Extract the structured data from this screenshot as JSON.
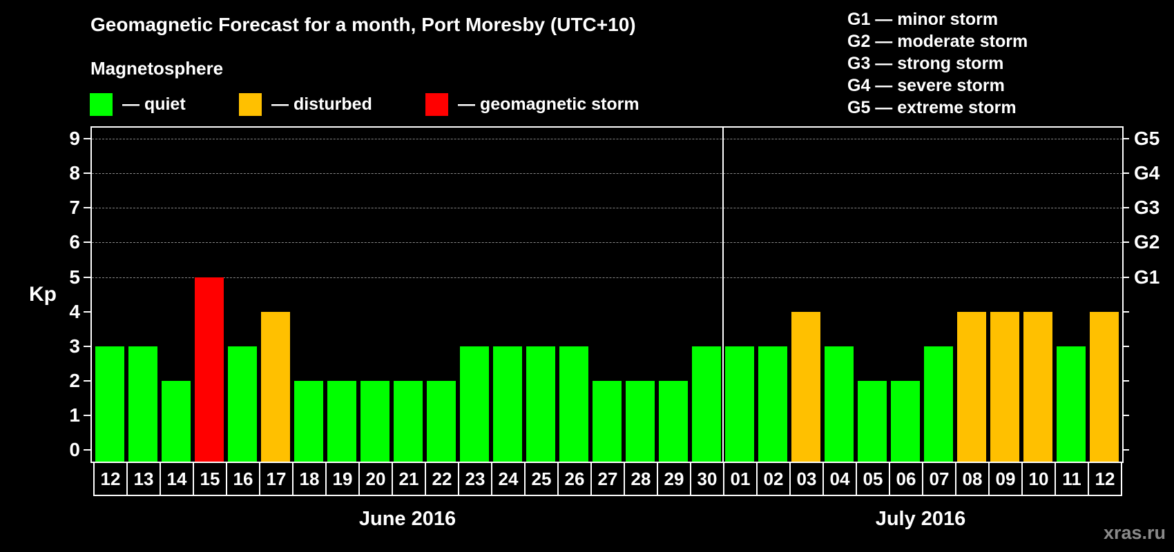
{
  "title": "Geomagnetic Forecast for a month, Port Moresby (UTC+10)",
  "subtitle": "Magnetosphere",
  "legend": [
    {
      "label": "— quiet",
      "color": "#00ff00"
    },
    {
      "label": "— disturbed",
      "color": "#ffc000"
    },
    {
      "label": "— geomagnetic storm",
      "color": "#ff0000"
    }
  ],
  "storm_scale": [
    "G1 — minor storm",
    "G2 — moderate storm",
    "G3 — strong storm",
    "G4 — severe storm",
    "G5 — extreme storm"
  ],
  "y_axis_label": "Kp",
  "y_ticks": [
    "0",
    "1",
    "2",
    "3",
    "4",
    "5",
    "6",
    "7",
    "8",
    "9"
  ],
  "right_ticks": [
    {
      "kp": 5,
      "label": "G1"
    },
    {
      "kp": 6,
      "label": "G2"
    },
    {
      "kp": 7,
      "label": "G3"
    },
    {
      "kp": 8,
      "label": "G4"
    },
    {
      "kp": 9,
      "label": "G5"
    }
  ],
  "months": [
    "June 2016",
    "July 2016"
  ],
  "watermark": "xras.ru",
  "colors": {
    "quiet": "#00ff00",
    "disturbed": "#ffc000",
    "storm": "#ff0000",
    "background": "#000000",
    "grid": "#8a8a8a"
  },
  "chart_data": {
    "type": "bar",
    "title": "Geomagnetic Forecast for a month, Port Moresby (UTC+10)",
    "xlabel": "",
    "ylabel": "Kp",
    "ylim": [
      0,
      9
    ],
    "grid": true,
    "legend_position": "top",
    "categories": [
      "12",
      "13",
      "14",
      "15",
      "16",
      "17",
      "18",
      "19",
      "20",
      "21",
      "22",
      "23",
      "24",
      "25",
      "26",
      "27",
      "28",
      "29",
      "30",
      "01",
      "02",
      "03",
      "04",
      "05",
      "06",
      "07",
      "08",
      "09",
      "10",
      "11",
      "12"
    ],
    "month_groups": [
      {
        "label": "June 2016",
        "start": 0,
        "end": 18
      },
      {
        "label": "July 2016",
        "start": 19,
        "end": 30
      }
    ],
    "values": [
      3,
      3,
      2,
      5,
      3,
      4,
      2,
      2,
      2,
      2,
      2,
      3,
      3,
      3,
      3,
      2,
      2,
      2,
      3,
      3,
      3,
      4,
      3,
      2,
      2,
      3,
      4,
      4,
      4,
      3,
      4
    ],
    "status": [
      "quiet",
      "quiet",
      "quiet",
      "storm",
      "quiet",
      "disturbed",
      "quiet",
      "quiet",
      "quiet",
      "quiet",
      "quiet",
      "quiet",
      "quiet",
      "quiet",
      "quiet",
      "quiet",
      "quiet",
      "quiet",
      "quiet",
      "quiet",
      "quiet",
      "disturbed",
      "quiet",
      "quiet",
      "quiet",
      "quiet",
      "disturbed",
      "disturbed",
      "disturbed",
      "quiet",
      "disturbed"
    ],
    "secondary_axis": {
      "5": "G1",
      "6": "G2",
      "7": "G3",
      "8": "G4",
      "9": "G5"
    }
  }
}
